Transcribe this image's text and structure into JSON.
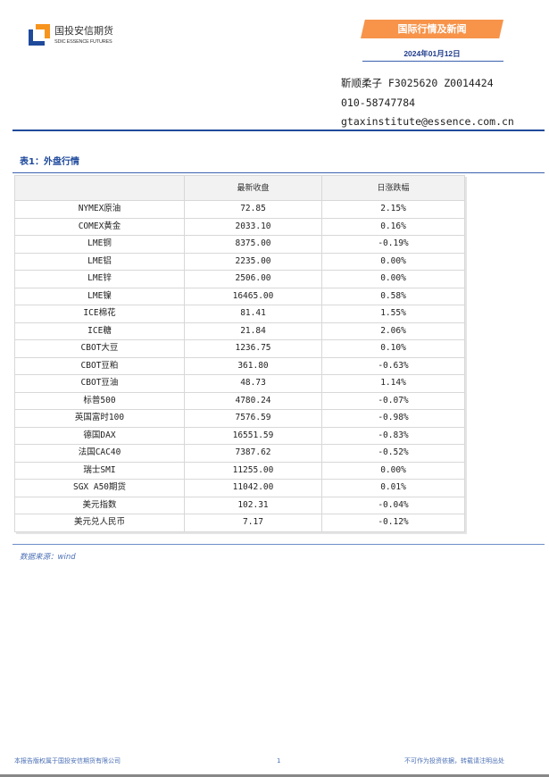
{
  "header": {
    "logo": {
      "cn": "国投安信期货",
      "en": "SDIC ESSENCE FUTURES",
      "colors": {
        "blue": "#1f4a9c",
        "orange": "#f7941d"
      }
    },
    "banner": "国际行情及新闻",
    "date": "2024年01月12日",
    "contact": {
      "name_line": "靳顺柔子 F3025620 Z0014424",
      "phone": "010-58747784",
      "email": "gtaxinstitute@essence.com.cn"
    }
  },
  "table": {
    "title": "表1：外盘行情",
    "columns": [
      "",
      "最新收盘",
      "日涨跌幅"
    ],
    "rows": [
      [
        "NYMEX原油",
        "72.85",
        "2.15%"
      ],
      [
        "COMEX黄金",
        "2033.10",
        "0.16%"
      ],
      [
        "LME铜",
        "8375.00",
        "-0.19%"
      ],
      [
        "LME铝",
        "2235.00",
        "0.00%"
      ],
      [
        "LME锌",
        "2506.00",
        "0.00%"
      ],
      [
        "LME镍",
        "16465.00",
        "0.58%"
      ],
      [
        "ICE棉花",
        "81.41",
        "1.55%"
      ],
      [
        "ICE糖",
        "21.84",
        "2.06%"
      ],
      [
        "CBOT大豆",
        "1236.75",
        "0.10%"
      ],
      [
        "CBOT豆粕",
        "361.80",
        "-0.63%"
      ],
      [
        "CBOT豆油",
        "48.73",
        "1.14%"
      ],
      [
        "标普500",
        "4780.24",
        "-0.07%"
      ],
      [
        "英国富时100",
        "7576.59",
        "-0.98%"
      ],
      [
        "德国DAX",
        "16551.59",
        "-0.83%"
      ],
      [
        "法国CAC40",
        "7387.62",
        "-0.52%"
      ],
      [
        "瑞士SMI",
        "11255.00",
        "0.00%"
      ],
      [
        "SGX A50期货",
        "11042.00",
        "0.01%"
      ],
      [
        "美元指数",
        "102.31",
        "-0.04%"
      ],
      [
        "美元兑人民币",
        "7.17",
        "-0.12%"
      ]
    ],
    "source": "数据来源：wind"
  },
  "footer": {
    "left": "本报告版权属于国投安信期货有限公司",
    "page": "1",
    "right": "不可作为投资依据，转载请注明出处"
  }
}
